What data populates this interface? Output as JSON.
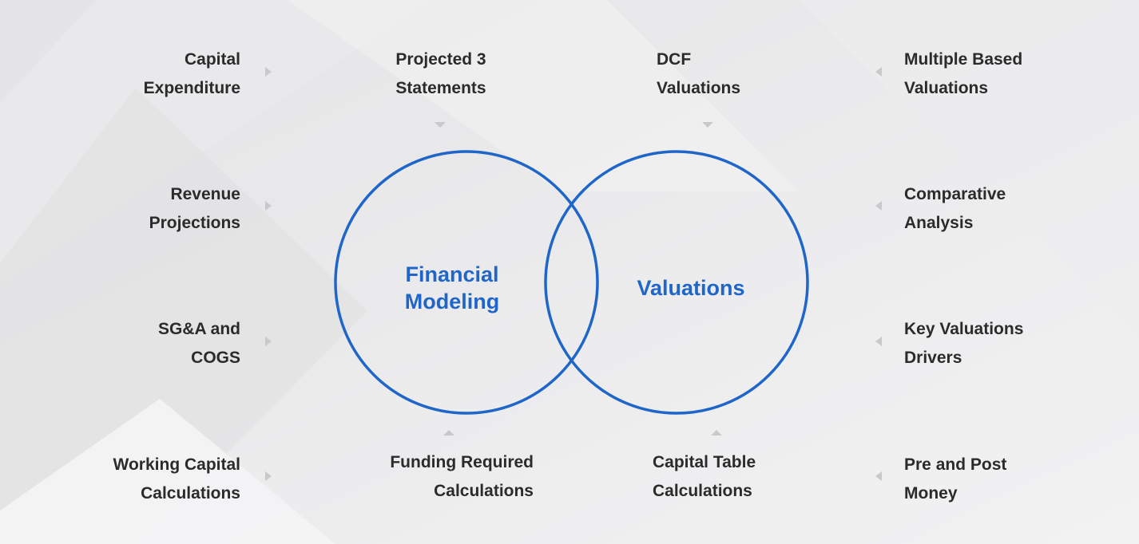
{
  "colors": {
    "accent": "#1f66c8",
    "text": "#2b2b2b",
    "arrow": "#c9c9cc",
    "background": "#ececed"
  },
  "center": {
    "left_circle_title": "Financial\nModeling",
    "right_circle_title": "Valuations"
  },
  "left_column": [
    "Capital\nExpenditure",
    "Revenue\nProjections",
    "SG&A and\nCOGS",
    "Working Capital\nCalculations"
  ],
  "right_column": [
    "Multiple Based\nValuations",
    "Comparative\nAnalysis",
    "Key Valuations\nDrivers",
    "Pre and Post\nMoney"
  ],
  "top_row": [
    "Projected 3\nStatements",
    "DCF\nValuations"
  ],
  "bottom_row": [
    "Funding Required\nCalculations",
    "Capital Table\nCalculations"
  ],
  "icons": {
    "arrow_right": "caret-right-icon",
    "arrow_left": "caret-left-icon",
    "arrow_down": "caret-down-icon",
    "arrow_up": "caret-up-icon"
  }
}
